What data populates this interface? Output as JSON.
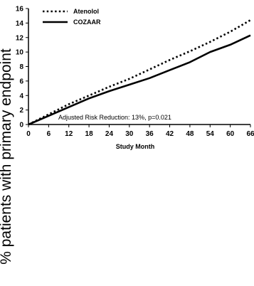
{
  "chart_data": {
    "type": "line",
    "title": "",
    "xlabel": "Study Month",
    "ylabel": "% patients with primary endpoint",
    "xlim": [
      0,
      66
    ],
    "ylim": [
      0,
      16
    ],
    "x_ticks": [
      "0",
      "6",
      "12",
      "18",
      "24",
      "30",
      "36",
      "42",
      "48",
      "54",
      "60",
      "66"
    ],
    "y_ticks": [
      "0",
      "2",
      "4",
      "6",
      "8",
      "10",
      "12",
      "14",
      "16"
    ],
    "grid": false,
    "legend_position": "top-left",
    "annotation": "Adjusted Risk Reduction: 13%, p=0.021",
    "series": [
      {
        "name": "Atenolol",
        "style": "dotted",
        "x": [
          0,
          6,
          12,
          18,
          24,
          30,
          36,
          42,
          48,
          54,
          60,
          66
        ],
        "values": [
          0,
          1.4,
          2.8,
          4.0,
          5.2,
          6.3,
          7.6,
          8.9,
          10.1,
          11.4,
          12.8,
          14.4
        ]
      },
      {
        "name": "COZAAR",
        "style": "solid",
        "x": [
          0,
          6,
          12,
          18,
          24,
          30,
          36,
          42,
          48,
          54,
          60,
          66
        ],
        "values": [
          0,
          1.2,
          2.4,
          3.6,
          4.6,
          5.5,
          6.4,
          7.5,
          8.6,
          10.0,
          11.0,
          12.3
        ]
      }
    ]
  }
}
